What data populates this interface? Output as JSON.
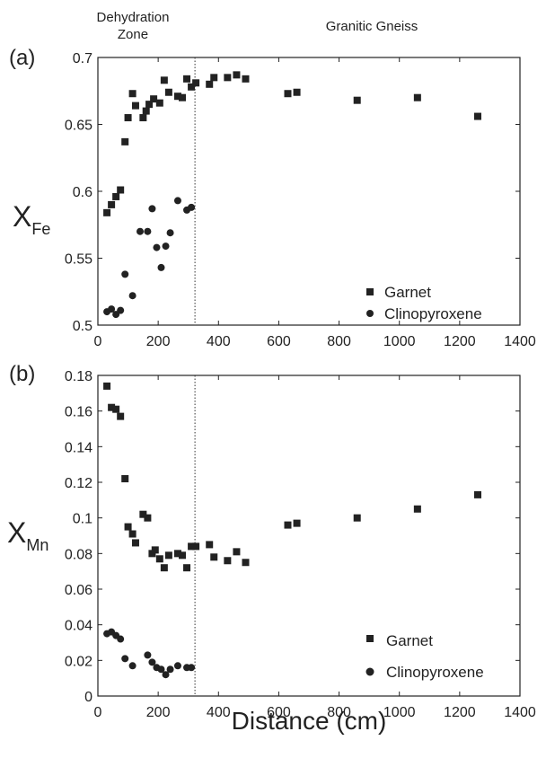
{
  "top_labels": {
    "left_line1": "Dehydration",
    "left_line2": "Zone",
    "right": "Granitic Gneiss"
  },
  "xlabel": "Distance (cm)",
  "chart_data": [
    {
      "type": "scatter",
      "panel_label": "(a)",
      "ylabel_main": "X",
      "ylabel_sub": "Fe",
      "xlim": [
        0,
        1400
      ],
      "ylim": [
        0.5,
        0.7
      ],
      "xticks": [
        0,
        200,
        400,
        600,
        800,
        1000,
        1200,
        1400
      ],
      "yticks": [
        0.5,
        0.55,
        0.6,
        0.65,
        0.7
      ],
      "ytick_labels": [
        "0.5",
        "0.55",
        "0.6",
        "0.65",
        "0.7"
      ],
      "vline_x": 322,
      "legend": {
        "position": "bottom-right"
      },
      "series": [
        {
          "name": "Garnet",
          "marker": "square",
          "x": [
            30,
            45,
            60,
            75,
            90,
            100,
            115,
            125,
            150,
            160,
            170,
            185,
            205,
            220,
            235,
            265,
            280,
            295,
            310,
            325,
            370,
            385,
            430,
            460,
            490,
            630,
            660,
            860,
            1060,
            1260
          ],
          "y": [
            0.584,
            0.59,
            0.596,
            0.601,
            0.637,
            0.655,
            0.673,
            0.664,
            0.655,
            0.66,
            0.665,
            0.669,
            0.666,
            0.683,
            0.674,
            0.671,
            0.67,
            0.684,
            0.678,
            0.681,
            0.68,
            0.685,
            0.685,
            0.687,
            0.684,
            0.673,
            0.674,
            0.668,
            0.67,
            0.656
          ]
        },
        {
          "name": "Clinopyroxene",
          "marker": "circle",
          "x": [
            30,
            45,
            60,
            75,
            90,
            115,
            140,
            165,
            180,
            195,
            210,
            225,
            240,
            265,
            295,
            310
          ],
          "y": [
            0.51,
            0.512,
            0.508,
            0.511,
            0.538,
            0.522,
            0.57,
            0.57,
            0.587,
            0.558,
            0.543,
            0.559,
            0.569,
            0.593,
            0.586,
            0.588
          ]
        }
      ]
    },
    {
      "type": "scatter",
      "panel_label": "(b)",
      "ylabel_main": "X",
      "ylabel_sub": "Mn",
      "xlim": [
        0,
        1400
      ],
      "ylim": [
        0,
        0.18
      ],
      "xticks": [
        0,
        200,
        400,
        600,
        800,
        1000,
        1200,
        1400
      ],
      "yticks": [
        0,
        0.02,
        0.04,
        0.06,
        0.08,
        0.1,
        0.12,
        0.14,
        0.16,
        0.18
      ],
      "ytick_labels": [
        "0",
        "0.02",
        "0.04",
        "0.06",
        "0.08",
        "0.1",
        "0.12",
        "0.14",
        "0.16",
        "0.18"
      ],
      "vline_x": 322,
      "legend": {
        "position": "bottom-right"
      },
      "series": [
        {
          "name": "Garnet",
          "marker": "square",
          "x": [
            30,
            45,
            60,
            75,
            90,
            100,
            115,
            125,
            150,
            165,
            180,
            190,
            205,
            220,
            235,
            265,
            280,
            295,
            310,
            325,
            370,
            385,
            430,
            460,
            490,
            630,
            660,
            860,
            1060,
            1260
          ],
          "y": [
            0.174,
            0.162,
            0.161,
            0.157,
            0.122,
            0.095,
            0.091,
            0.086,
            0.102,
            0.1,
            0.08,
            0.082,
            0.077,
            0.072,
            0.079,
            0.08,
            0.079,
            0.072,
            0.084,
            0.084,
            0.085,
            0.078,
            0.076,
            0.081,
            0.075,
            0.096,
            0.097,
            0.1,
            0.105,
            0.113
          ]
        },
        {
          "name": "Clinopyroxene",
          "marker": "circle",
          "x": [
            30,
            45,
            60,
            75,
            90,
            115,
            165,
            180,
            195,
            210,
            225,
            240,
            265,
            295,
            310
          ],
          "y": [
            0.035,
            0.036,
            0.034,
            0.032,
            0.021,
            0.017,
            0.023,
            0.019,
            0.016,
            0.015,
            0.012,
            0.015,
            0.017,
            0.016,
            0.016
          ]
        }
      ]
    }
  ]
}
